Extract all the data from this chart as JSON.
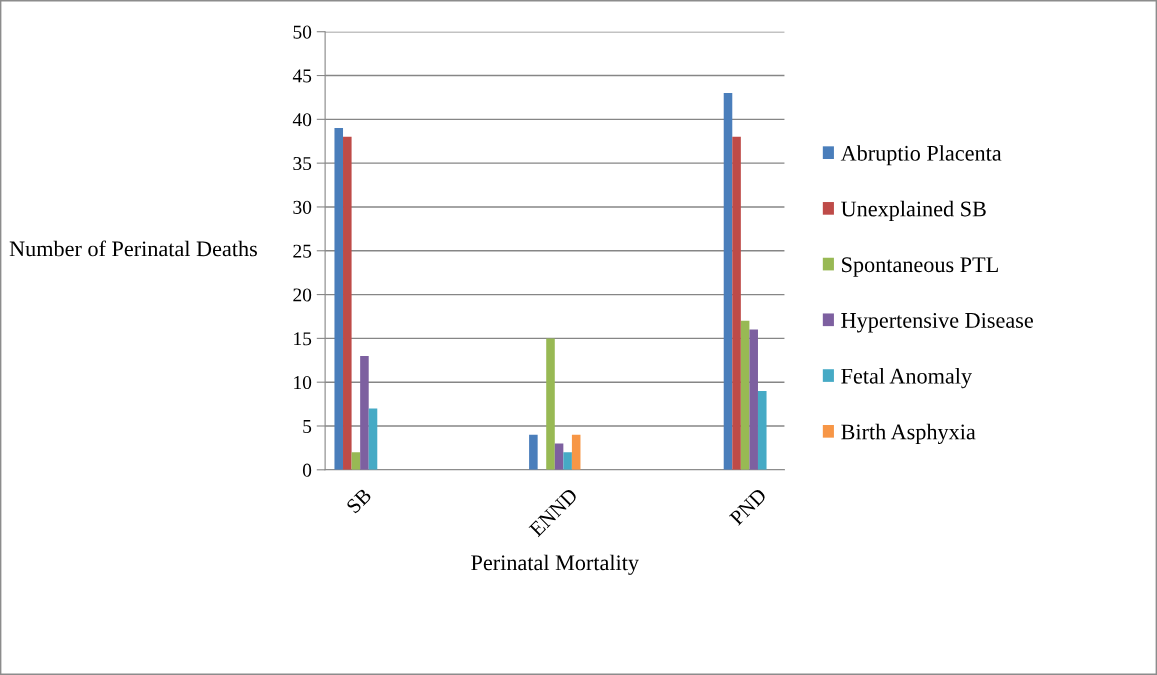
{
  "chart_data": {
    "type": "bar",
    "xlabel": "Perinatal Mortality",
    "ylabel": "Number of Perinatal Deaths",
    "categories": [
      "SB",
      "ENND",
      "PND"
    ],
    "series": [
      {
        "name": "Abruptio Placenta",
        "color": "#4a7ebb",
        "values": [
          39,
          4,
          43
        ]
      },
      {
        "name": "Unexplained SB",
        "color": "#be4b48",
        "values": [
          38,
          0,
          38
        ]
      },
      {
        "name": "Spontaneous PTL",
        "color": "#98b954",
        "values": [
          2,
          15,
          17
        ]
      },
      {
        "name": "Hypertensive Disease",
        "color": "#7d60a0",
        "values": [
          13,
          3,
          16
        ]
      },
      {
        "name": "Fetal Anomaly",
        "color": "#46aac5",
        "values": [
          7,
          2,
          9
        ]
      },
      {
        "name": "Birth Asphyxia",
        "color": "#f79646",
        "values": [
          0,
          4,
          0
        ]
      }
    ],
    "ylim": [
      0,
      50
    ],
    "yticks": [
      0,
      5,
      10,
      15,
      20,
      25,
      30,
      35,
      40,
      45,
      50
    ],
    "grid": "y",
    "legend": "right"
  }
}
